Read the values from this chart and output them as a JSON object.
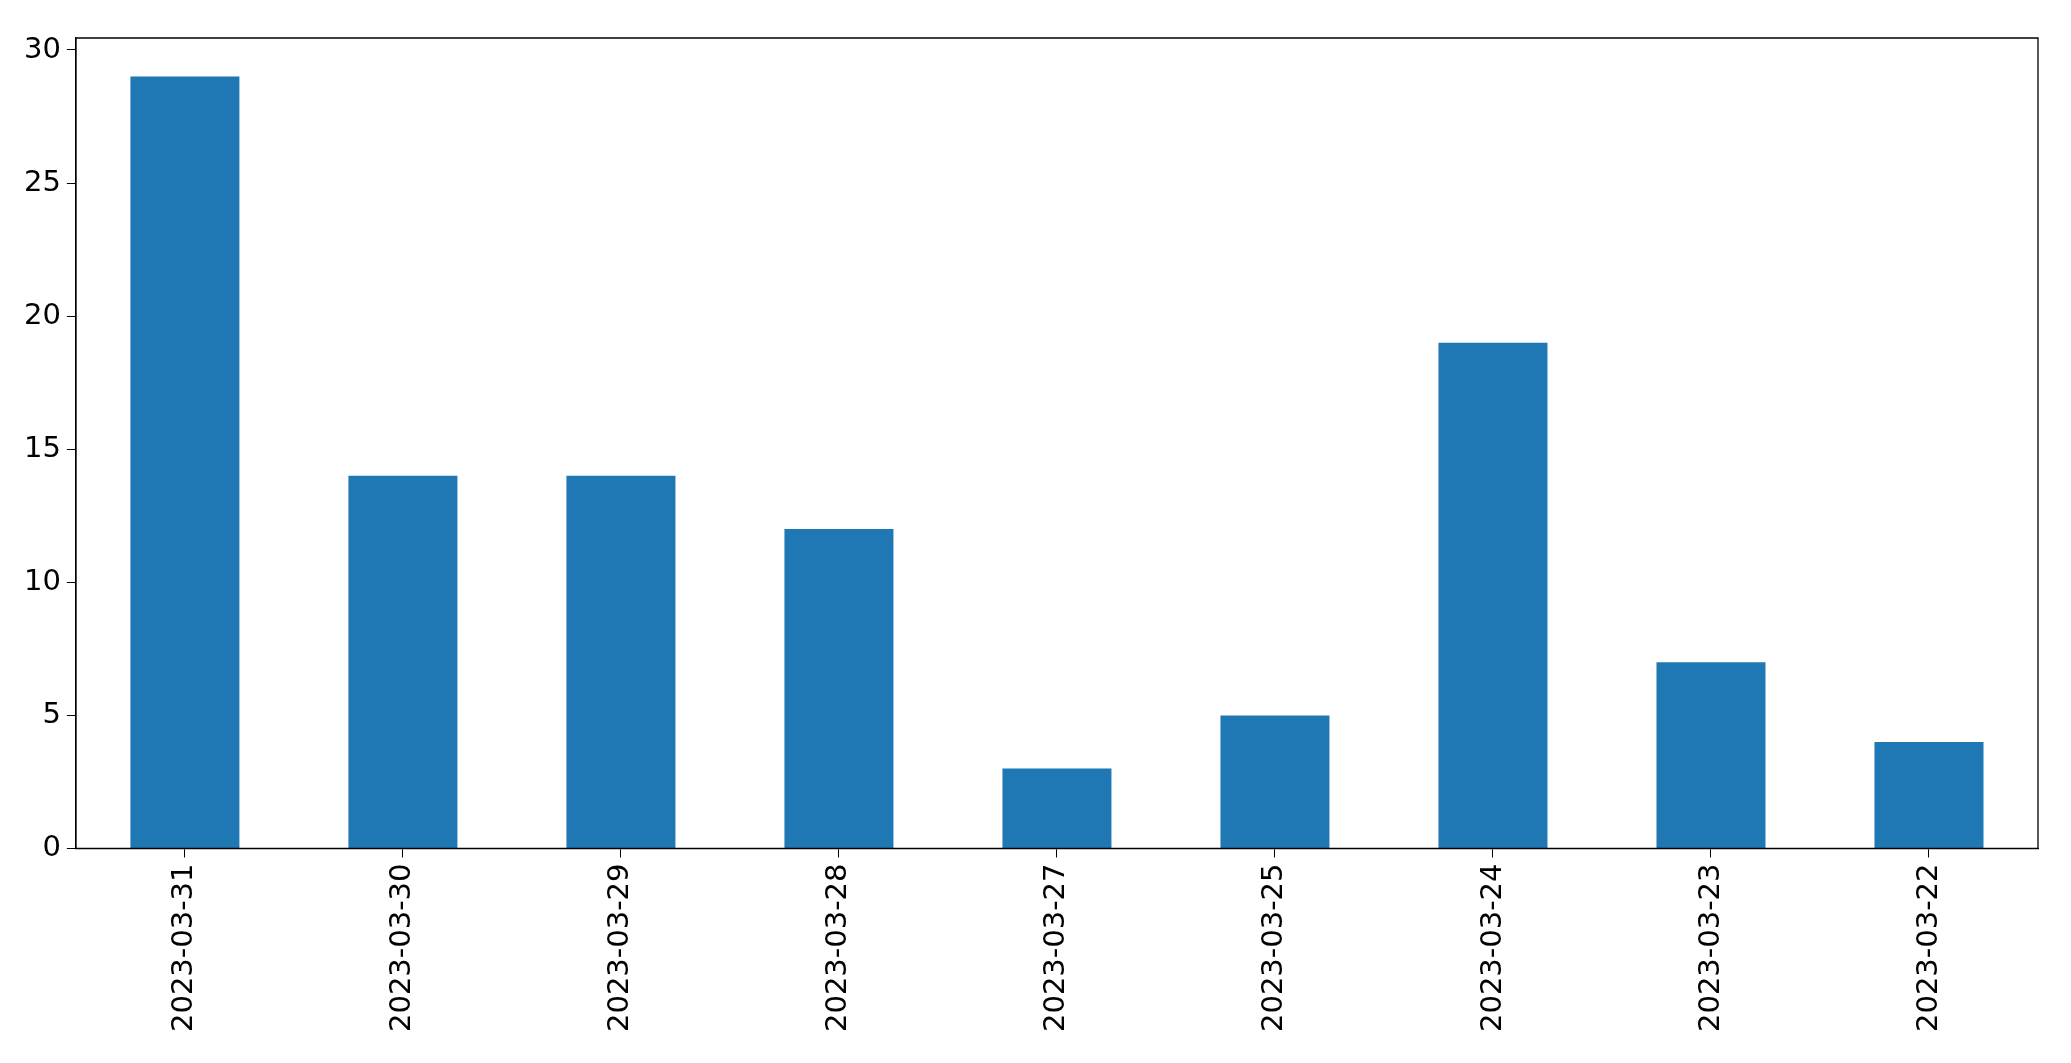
{
  "chart_data": {
    "type": "bar",
    "categories": [
      "2023-03-31",
      "2023-03-30",
      "2023-03-29",
      "2023-03-28",
      "2023-03-27",
      "2023-03-25",
      "2023-03-24",
      "2023-03-23",
      "2023-03-22"
    ],
    "values": [
      29,
      14,
      14,
      12,
      3,
      5,
      19,
      7,
      4
    ],
    "color": "#1f77b4",
    "ylim": [
      0,
      30.45
    ],
    "yticks": [
      0,
      5,
      10,
      15,
      20,
      25,
      30
    ],
    "grid": false,
    "legend": false
  }
}
